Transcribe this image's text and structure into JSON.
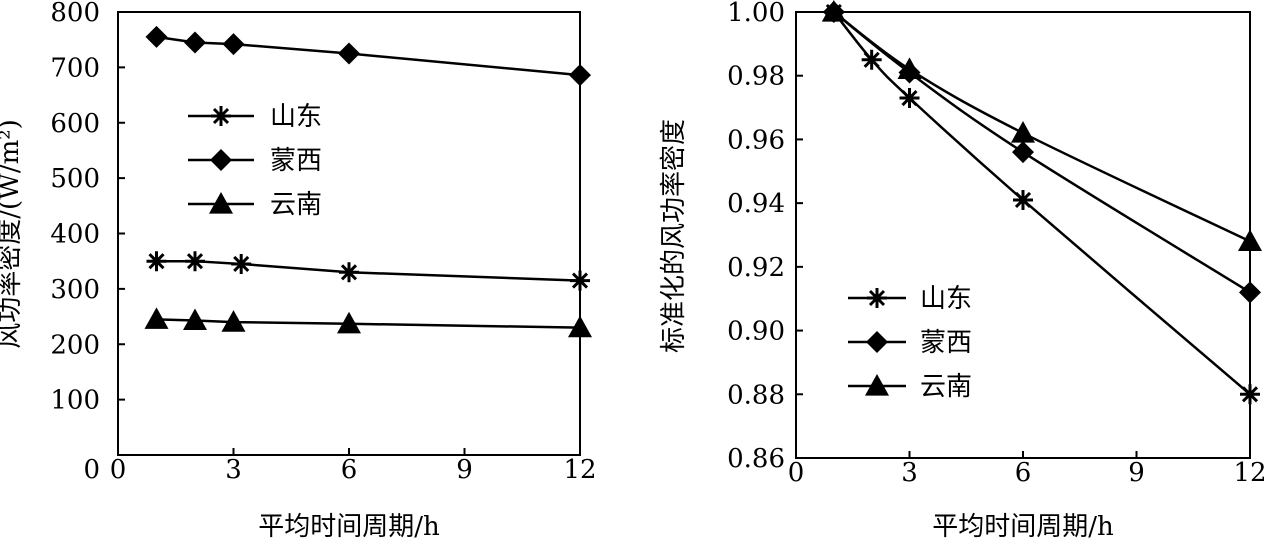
{
  "chart_data": [
    {
      "type": "line",
      "xlabel": "平均时间周期/h",
      "ylabel": "风功率密度/(W/m²)",
      "xlim": [
        0,
        12
      ],
      "ylim": [
        0,
        800
      ],
      "xticks": [
        0,
        3,
        6,
        9,
        12
      ],
      "yticks": [
        100,
        200,
        300,
        400,
        500,
        600,
        700,
        800
      ],
      "legend": "left-middle",
      "grid": false,
      "series": [
        {
          "name": "山东",
          "marker": "asterisk",
          "x": [
            1,
            2,
            3.2,
            6,
            12
          ],
          "y": [
            350,
            350,
            345,
            330,
            315
          ]
        },
        {
          "name": "蒙西",
          "marker": "diamond",
          "x": [
            1,
            2,
            3,
            6,
            12
          ],
          "y": [
            755,
            745,
            742,
            725,
            686
          ]
        },
        {
          "name": "云南",
          "marker": "triangle",
          "x": [
            1,
            2,
            3,
            6,
            12
          ],
          "y": [
            245,
            243,
            240,
            237,
            230
          ]
        }
      ]
    },
    {
      "type": "line",
      "xlabel": "平均时间周期/h",
      "ylabel": "标准化的风功率密度",
      "xlim": [
        0,
        12
      ],
      "ylim": [
        0.86,
        1.0
      ],
      "xticks": [
        0,
        3,
        6,
        9,
        12
      ],
      "yticks": [
        "0.86",
        "0.88",
        "0.90",
        "0.92",
        "0.94",
        "0.96",
        "0.98",
        "1.00"
      ],
      "legend": "left-bottom",
      "grid": false,
      "series": [
        {
          "name": "山东",
          "marker": "asterisk",
          "x": [
            1,
            2,
            3,
            6,
            12
          ],
          "y": [
            1.0,
            0.985,
            0.973,
            0.941,
            0.88
          ]
        },
        {
          "name": "蒙西",
          "marker": "diamond",
          "x": [
            1,
            3,
            6,
            12
          ],
          "y": [
            1.0,
            0.981,
            0.956,
            0.912
          ]
        },
        {
          "name": "云南",
          "marker": "triangle",
          "x": [
            1,
            3,
            6,
            12
          ],
          "y": [
            1.0,
            0.982,
            0.962,
            0.928
          ]
        }
      ]
    }
  ]
}
